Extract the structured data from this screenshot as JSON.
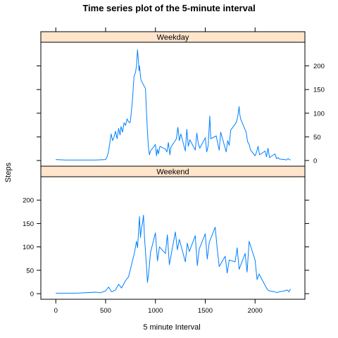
{
  "chart_data": {
    "type": "line",
    "title": "Time series plot of the 5-minute interval",
    "xlabel": "5 minute Interval",
    "ylabel": "Steps",
    "xlim": [
      -150,
      2500
    ],
    "ylim": [
      -12,
      250
    ],
    "x_ticks": [
      0,
      500,
      1000,
      1500,
      2000
    ],
    "y_ticks": [
      0,
      50,
      100,
      150,
      200
    ],
    "strip_color": "#ffe5cc",
    "line_color": "#0080ff",
    "grid": false,
    "legend": "none",
    "panels": [
      {
        "name": "Weekday",
        "x": [
          0,
          100,
          200,
          300,
          400,
          500,
          515,
          530,
          545,
          555,
          570,
          585,
          600,
          615,
          630,
          645,
          655,
          670,
          685,
          700,
          715,
          730,
          745,
          755,
          770,
          785,
          800,
          810,
          820,
          830,
          835,
          840,
          850,
          855,
          900,
          910,
          920,
          930,
          940,
          950,
          1000,
          1010,
          1020,
          1030,
          1045,
          1100,
          1115,
          1130,
          1145,
          1155,
          1210,
          1225,
          1240,
          1255,
          1300,
          1315,
          1330,
          1345,
          1400,
          1415,
          1430,
          1445,
          1500,
          1515,
          1530,
          1545,
          1555,
          1610,
          1625,
          1640,
          1655,
          1710,
          1725,
          1740,
          1755,
          1810,
          1825,
          1840,
          1845,
          1855,
          1910,
          1925,
          1940,
          1955,
          2000,
          2015,
          2030,
          2045,
          2100,
          2115,
          2130,
          2145,
          2200,
          2215,
          2230,
          2245,
          2300,
          2315,
          2330,
          2355
        ],
        "values": [
          2,
          1,
          1,
          1,
          1,
          2,
          8,
          20,
          40,
          56,
          42,
          50,
          62,
          46,
          68,
          54,
          72,
          60,
          80,
          74,
          88,
          82,
          80,
          96,
          130,
          178,
          186,
          200,
          234,
          210,
          190,
          200,
          178,
          170,
          152,
          104,
          62,
          28,
          12,
          20,
          34,
          10,
          24,
          14,
          30,
          24,
          18,
          38,
          12,
          28,
          46,
          70,
          42,
          56,
          20,
          66,
          30,
          44,
          22,
          58,
          36,
          26,
          48,
          18,
          32,
          94,
          46,
          52,
          36,
          22,
          60,
          18,
          42,
          32,
          64,
          80,
          92,
          114,
          100,
          88,
          60,
          40,
          34,
          22,
          10,
          18,
          30,
          12,
          20,
          8,
          26,
          6,
          14,
          4,
          6,
          3,
          2,
          1,
          4,
          1
        ]
      },
      {
        "name": "Weekend",
        "x": [
          0,
          100,
          200,
          300,
          400,
          450,
          500,
          530,
          560,
          600,
          630,
          660,
          700,
          730,
          760,
          790,
          810,
          820,
          830,
          840,
          850,
          860,
          870,
          880,
          890,
          900,
          910,
          920,
          930,
          940,
          950,
          1000,
          1020,
          1040,
          1100,
          1120,
          1140,
          1200,
          1220,
          1240,
          1300,
          1320,
          1340,
          1400,
          1420,
          1440,
          1500,
          1520,
          1540,
          1600,
          1620,
          1640,
          1700,
          1720,
          1740,
          1800,
          1820,
          1840,
          1900,
          1920,
          1940,
          2000,
          2020,
          2040,
          2100,
          2120,
          2140,
          2200,
          2220,
          2240,
          2300,
          2320,
          2340,
          2355
        ],
        "values": [
          1,
          1,
          1,
          2,
          3,
          2,
          6,
          14,
          4,
          8,
          20,
          12,
          28,
          36,
          62,
          88,
          112,
          98,
          130,
          165,
          120,
          140,
          150,
          168,
          120,
          90,
          60,
          24,
          40,
          62,
          88,
          130,
          70,
          100,
          86,
          126,
          62,
          132,
          94,
          116,
          68,
          108,
          90,
          124,
          60,
          96,
          128,
          74,
          110,
          142,
          96,
          58,
          80,
          44,
          72,
          68,
          98,
          52,
          86,
          46,
          112,
          72,
          30,
          42,
          18,
          10,
          6,
          4,
          2,
          4,
          6,
          8,
          4,
          10
        ]
      }
    ]
  }
}
